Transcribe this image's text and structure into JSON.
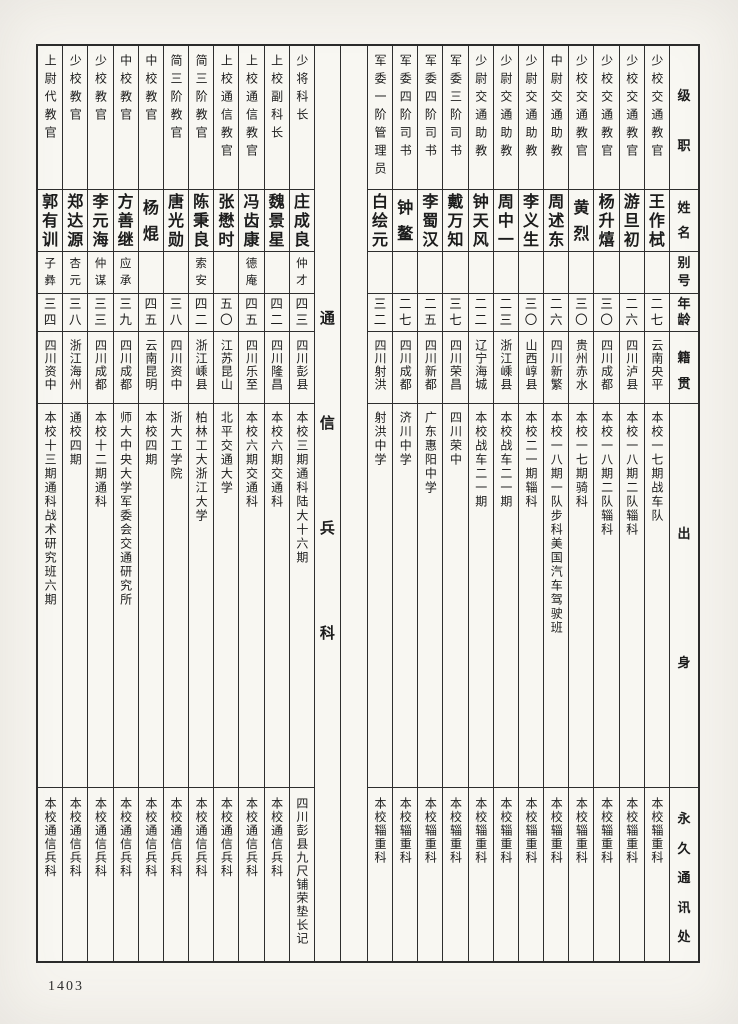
{
  "page": {
    "number": "1403",
    "section_title": "通信兵科"
  },
  "headers": {
    "rank": "级职",
    "name": "姓名",
    "alias": "别号",
    "age": "年龄",
    "native": "籍贯",
    "origin": "出身",
    "address": "永久通讯处"
  },
  "right_persons": [
    {
      "rank": "少校交通教官",
      "name": "王作栻",
      "alias": "",
      "age": "二七",
      "native": "云南央平",
      "origin": "本校一七期战车队",
      "address": "本校辎重科"
    },
    {
      "rank": "少校交通教官",
      "name": "游旦初",
      "alias": "",
      "age": "二六",
      "native": "四川泸县",
      "origin": "本校一八期二队辎科",
      "address": "本校辎重科"
    },
    {
      "rank": "少校交通教官",
      "name": "杨升熺",
      "alias": "",
      "age": "三〇",
      "native": "四川成都",
      "origin": "本校一八期二队辎科",
      "address": "本校辎重科"
    },
    {
      "rank": "少校交通教官",
      "name": "黄烈",
      "alias": "",
      "age": "三〇",
      "native": "贵州赤水",
      "origin": "本校一七期骑科",
      "address": "本校辎重科"
    },
    {
      "rank": "中尉交通助教",
      "name": "周述东",
      "alias": "",
      "age": "二六",
      "native": "四川新繁",
      "origin": "本校一八期一队步科美国汽车驾驶班",
      "address": "本校辎重科"
    },
    {
      "rank": "少尉交通助教",
      "name": "李义生",
      "alias": "",
      "age": "三〇",
      "native": "山西崞县",
      "origin": "本校二一期辎科",
      "address": "本校辎重科"
    },
    {
      "rank": "少尉交通助教",
      "name": "周中一",
      "alias": "",
      "age": "二三",
      "native": "浙江嵊县",
      "origin": "本校战车二一期",
      "address": "本校辎重科"
    },
    {
      "rank": "少尉交通助教",
      "name": "钟天风",
      "alias": "",
      "age": "二二",
      "native": "辽宁海城",
      "origin": "本校战车二一期",
      "address": "本校辎重科"
    },
    {
      "rank": "军委三阶司书",
      "name": "戴万知",
      "alias": "",
      "age": "三七",
      "native": "四川荣昌",
      "origin": "四川荣中",
      "address": "本校辎重科"
    },
    {
      "rank": "军委四阶司书",
      "name": "李蜀汉",
      "alias": "",
      "age": "二五",
      "native": "四川新都",
      "origin": "广东惠阳中学",
      "address": "本校辎重科"
    },
    {
      "rank": "军委四阶司书",
      "name": "钟鳌",
      "alias": "",
      "age": "二七",
      "native": "四川成都",
      "origin": "济川中学",
      "address": "本校辎重科"
    },
    {
      "rank": "军委一阶管理员",
      "name": "白绘元",
      "alias": "",
      "age": "三二",
      "native": "四川射洪",
      "origin": "射洪中学",
      "address": "本校辎重科"
    }
  ],
  "left_persons": [
    {
      "rank": "少将科长",
      "name": "庄成良",
      "alias": "仲才",
      "age": "四三",
      "native": "四川彭县",
      "origin": "本校三期通科陆大十六期",
      "address": "四川彭县九尺铺荣垫长记"
    },
    {
      "rank": "上校副科长",
      "name": "魏景星",
      "alias": "",
      "age": "四二",
      "native": "四川隆昌",
      "origin": "本校六期交通科",
      "address": "本校通信兵科"
    },
    {
      "rank": "上校通信教官",
      "name": "冯齿康",
      "alias": "德庵",
      "age": "四五",
      "native": "四川乐至",
      "origin": "本校六期交通科",
      "address": "本校通信兵科"
    },
    {
      "rank": "上校通信教官",
      "name": "张懋时",
      "alias": "",
      "age": "五〇",
      "native": "江苏昆山",
      "origin": "北平交通大学",
      "address": "本校通信兵科"
    },
    {
      "rank": "简三阶教官",
      "name": "陈秉良",
      "alias": "索安",
      "age": "四二",
      "native": "浙江嵊县",
      "origin": "柏林工大浙江大学",
      "address": "本校通信兵科"
    },
    {
      "rank": "简三阶教官",
      "name": "唐光勋",
      "alias": "",
      "age": "三八",
      "native": "四川资中",
      "origin": "浙大工学院",
      "address": "本校通信兵科"
    },
    {
      "rank": "中校教官",
      "name": "杨焜",
      "alias": "",
      "age": "四五",
      "native": "云南昆明",
      "origin": "本校四期",
      "address": "本校通信兵科"
    },
    {
      "rank": "中校教官",
      "name": "方善继",
      "alias": "应承",
      "age": "三九",
      "native": "四川成都",
      "origin": "师大中央大学军委会交通研究所",
      "address": "本校通信兵科"
    },
    {
      "rank": "少校教官",
      "name": "李元海",
      "alias": "仲谋",
      "age": "三三",
      "native": "四川成都",
      "origin": "本校十二期通科",
      "address": "本校通信兵科"
    },
    {
      "rank": "少校教官",
      "name": "郑达源",
      "alias": "杏元",
      "age": "三八",
      "native": "浙江海州",
      "origin": "通校四期",
      "address": "本校通信兵科"
    },
    {
      "rank": "上尉代教官",
      "name": "郭有训",
      "alias": "子彝",
      "age": "三四",
      "native": "四川资中",
      "origin": "本校十三期通科战术研究班六期",
      "address": "本校通信兵科"
    }
  ]
}
